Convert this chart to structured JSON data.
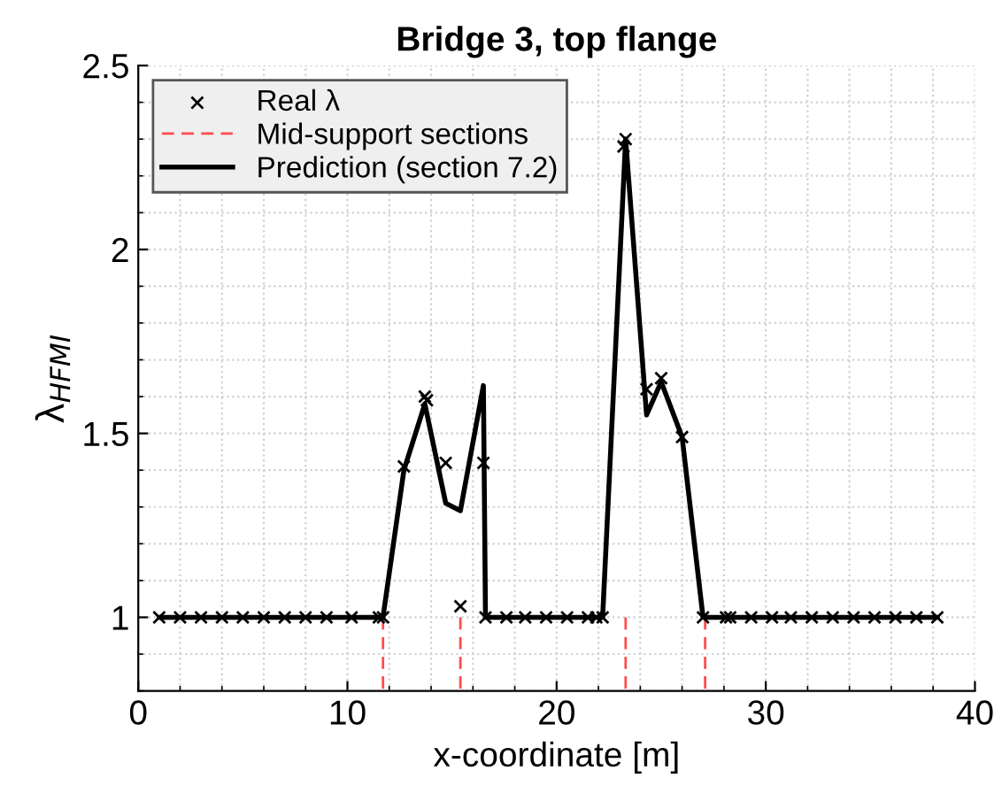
{
  "chart_data": {
    "type": "line",
    "title": "Bridge 3, top flange",
    "xlabel": "x-coordinate [m]",
    "ylabel": "λ$_{HFMI}$",
    "xlim": [
      0,
      40
    ],
    "xticks": [
      0,
      10,
      20,
      30,
      40
    ],
    "ylim": [
      0.8,
      2.5
    ],
    "yticks": [
      1,
      1.5,
      2,
      2.5
    ],
    "grid": true,
    "legend": "top left",
    "series": [
      {
        "name": "Real λ",
        "type": "scatter",
        "marker": "cross",
        "color": "#000000",
        "x": [
          1.0,
          2.0,
          3.0,
          4.0,
          5.0,
          6.0,
          7.0,
          8.0,
          9.0,
          10.2,
          11.5,
          11.7,
          12.7,
          13.7,
          13.8,
          14.7,
          15.4,
          16.5,
          16.6,
          17.6,
          18.5,
          19.5,
          20.5,
          21.5,
          21.9,
          22.2,
          23.2,
          23.3,
          24.3,
          25.0,
          26.0,
          27.0,
          28.1,
          28.3,
          29.3,
          30.3,
          31.2,
          32.2,
          33.2,
          34.2,
          35.2,
          36.2,
          37.2,
          38.2
        ],
        "values": [
          1,
          1,
          1,
          1,
          1,
          1,
          1,
          1,
          1,
          1,
          1,
          1,
          1.41,
          1.6,
          1.59,
          1.42,
          1.03,
          1.42,
          1,
          1,
          1,
          1,
          1,
          1,
          1,
          1,
          2.28,
          2.3,
          1.62,
          1.65,
          1.49,
          1,
          1,
          1,
          1,
          1,
          1,
          1,
          1,
          1,
          1,
          1,
          1,
          1
        ]
      },
      {
        "name": "Mid-support sections",
        "line_style": "dashed",
        "color": "#ff4d4d",
        "x": [
          11.7,
          11.7
        ],
        "values": [
          1,
          0.8
        ]
      },
      {
        "line_style": "dashed",
        "color": "#ff4d4d",
        "x": [
          15.4,
          15.4
        ],
        "values": [
          1,
          0.8
        ]
      },
      {
        "line_style": "dashed",
        "color": "#ff4d4d",
        "x": [
          23.3,
          23.3
        ],
        "values": [
          1,
          0.8
        ]
      },
      {
        "line_style": "dashed",
        "color": "#ff4d4d",
        "x": [
          27.1,
          27.1
        ],
        "values": [
          1,
          0.8
        ]
      },
      {
        "name": "Prediction (section 7.2)",
        "line_style": "solid",
        "color": "#000000",
        "x": [
          1.0,
          11.7,
          12.7,
          13.7,
          14.7,
          15.4,
          16.5,
          16.6,
          22.2,
          23.3,
          24.3,
          25.0,
          26.0,
          27.0,
          38.2
        ],
        "values": [
          1,
          1,
          1.4,
          1.58,
          1.31,
          1.29,
          1.63,
          1,
          1,
          2.3,
          1.55,
          1.64,
          1.49,
          1,
          1
        ]
      }
    ]
  }
}
